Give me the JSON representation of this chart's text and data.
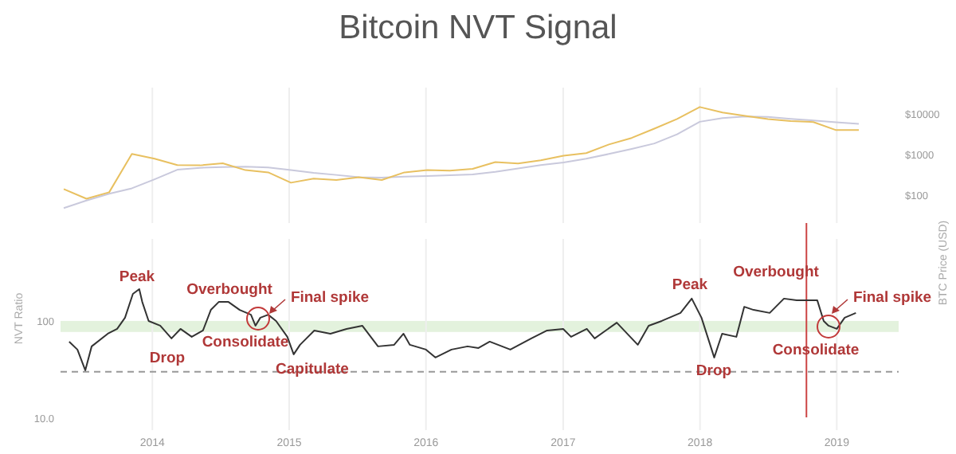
{
  "chart_data": [
    {
      "type": "line",
      "title": "Bitcoin NVT Signal",
      "ylabel": "BTC Price (USD)",
      "log": true,
      "grid": "x",
      "tick_labels": "y",
      "categories": [
        null,
        null,
        null,
        null,
        null,
        null,
        null,
        null,
        null,
        null,
        null,
        null,
        null,
        null,
        null,
        null,
        null,
        null,
        null,
        null,
        null,
        null,
        null,
        null,
        null,
        null,
        null,
        null,
        null,
        null,
        null,
        null,
        null,
        null,
        null,
        null
      ],
      "ylim": [
        21,
        45000
      ],
      "yticks": [
        {
          "value": 100,
          "label": "$100"
        },
        {
          "value": 1000,
          "label": "$1000"
        },
        {
          "value": 10000,
          "label": "$10000"
        }
      ],
      "series": [
        {
          "color": "#c9c9dc",
          "values": [
            49,
            75,
            110,
            150,
            250,
            430,
            480,
            500,
            510,
            490,
            420,
            360,
            320,
            280,
            275,
            290,
            300,
            315,
            330,
            380,
            460,
            560,
            650,
            800,
            1050,
            1400,
            1900,
            3200,
            6500,
            8000,
            8800,
            8600,
            7700,
            7000,
            6300,
            5800
          ]
        },
        {
          "color": "#e8c060",
          "values": [
            144,
            83,
            120,
            1050,
            800,
            560,
            550,
            620,
            420,
            370,
            206,
            260,
            240,
            280,
            240,
            370,
            420,
            410,
            450,
            660,
            610,
            730,
            950,
            1100,
            1800,
            2600,
            4400,
            7600,
            15000,
            11000,
            9100,
            7600,
            6800,
            6400,
            4050,
            4050
          ]
        }
      ]
    },
    {
      "type": "line",
      "ylabel": "NVT Ratio",
      "log": true,
      "grid": "x",
      "xlim": [
        "2013-05-01",
        "2019-06-15"
      ],
      "xticks": [
        {
          "value": "2014-01-01",
          "label": "2014"
        },
        {
          "value": "2015-01-01",
          "label": "2015"
        },
        {
          "value": "2016-01-01",
          "label": "2016"
        },
        {
          "value": "2017-01-01",
          "label": "2017"
        },
        {
          "value": "2018-01-01",
          "label": "2018"
        },
        {
          "value": "2019-01-01",
          "label": "2019"
        }
      ],
      "ylim": [
        7.5,
        700
      ],
      "yticks": [
        {
          "value": 10,
          "label": "10.0"
        },
        100
      ],
      "bands": [
        {
          "axis": "y",
          "from": 77,
          "to": 100,
          "color": "#dcefd4"
        }
      ],
      "ref_lines": [
        {
          "axis": "y",
          "value": 30,
          "color": "#999999",
          "line_style": "dashed"
        },
        {
          "axis": "x",
          "value": "2018-10-12",
          "color": "#cc4444",
          "line_style": "solid"
        }
      ],
      "series": [
        {
          "color": "#333333",
          "x": [
            "2013-05-24",
            "2013-06-15",
            "2013-07-06",
            "2013-07-23",
            "2013-09-04",
            "2013-09-29",
            "2013-10-20",
            "2013-11-10",
            "2013-11-27",
            "2013-12-05",
            "2013-12-22",
            "2014-01-22",
            "2014-02-21",
            "2014-03-17",
            "2014-04-16",
            "2014-05-16",
            "2014-06-06",
            "2014-06-27",
            "2014-07-23",
            "2014-08-22",
            "2014-09-21",
            "2014-10-03",
            "2014-10-16",
            "2014-11-06",
            "2014-11-27",
            "2014-12-27",
            "2015-01-13",
            "2015-01-30",
            "2015-03-09",
            "2015-04-21",
            "2015-06-03",
            "2015-07-15",
            "2015-08-26",
            "2015-10-08",
            "2015-11-02",
            "2015-11-19",
            "2016-01-01",
            "2016-01-26",
            "2016-03-09",
            "2016-04-21",
            "2016-05-20",
            "2016-06-19",
            "2016-08-13",
            "2016-10-08",
            "2016-11-19",
            "2017-01-01",
            "2017-01-22",
            "2017-03-05",
            "2017-03-26",
            "2017-05-24",
            "2017-07-19",
            "2017-08-17",
            "2017-09-21",
            "2017-11-10",
            "2017-12-10",
            "2018-01-05",
            "2018-02-08",
            "2018-03-01",
            "2018-04-08",
            "2018-04-29",
            "2018-05-24",
            "2018-07-06",
            "2018-08-13",
            "2018-09-16",
            "2018-11-10",
            "2018-11-27",
            "2018-12-10",
            "2019-01-01",
            "2019-01-22",
            "2019-02-21"
          ],
          "values": [
            61.2,
            50.7,
            31,
            54.7,
            73.9,
            82.8,
            108,
            190,
            213,
            157,
            100,
            89.3,
            66,
            82.8,
            68.6,
            79.7,
            130,
            157,
            157,
            130,
            116,
            89.3,
            108,
            116,
            100,
            68.6,
            45.3,
            56.8,
            79.7,
            73.9,
            82.8,
            89.3,
            54.7,
            56.8,
            73.9,
            56.8,
            50.7,
            42,
            50.7,
            54.7,
            52.6,
            61.2,
            50.7,
            66,
            79.7,
            82.8,
            68.6,
            82.8,
            66,
            96,
            56.8,
            89.3,
            100,
            121,
            170,
            108,
            42,
            73.9,
            68.6,
            140,
            130,
            121,
            170,
            163,
            163,
            100,
            89.3,
            82.8,
            108,
            121
          ]
        }
      ],
      "annotations": [
        "Peak",
        "Overbought",
        "Final spike",
        "Consolidate",
        "Drop",
        "Capitulate",
        "Peak",
        "Overbought",
        "Consolidate",
        "Drop",
        "Final spike"
      ]
    }
  ]
}
